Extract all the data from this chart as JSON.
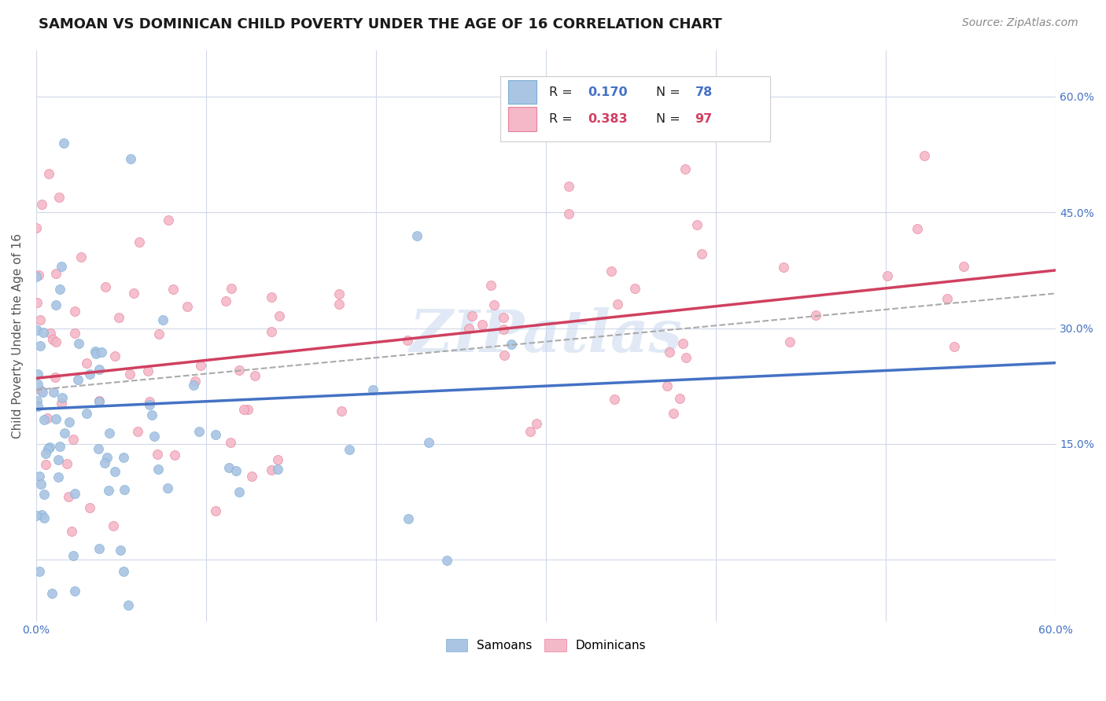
{
  "title": "SAMOAN VS DOMINICAN CHILD POVERTY UNDER THE AGE OF 16 CORRELATION CHART",
  "source": "Source: ZipAtlas.com",
  "ylabel": "Child Poverty Under the Age of 16",
  "x_ticks": [
    0.0,
    0.1,
    0.2,
    0.3,
    0.4,
    0.5,
    0.6
  ],
  "x_tick_labels": [
    "0.0%",
    "",
    "",
    "",
    "",
    "",
    "60.0%"
  ],
  "y_ticks": [
    0.0,
    0.15,
    0.3,
    0.45,
    0.6
  ],
  "y_tick_labels_right": [
    "",
    "15.0%",
    "30.0%",
    "45.0%",
    "60.0%"
  ],
  "xlim": [
    0.0,
    0.6
  ],
  "ylim": [
    -0.08,
    0.66
  ],
  "samoan_color": "#aac4e4",
  "samoan_edge_color": "#7bafd4",
  "dominican_color": "#f4b8c8",
  "dominican_edge_color": "#e8819a",
  "samoan_line_color": "#4472c4",
  "dominican_line_color": "#d04060",
  "dashed_line_color": "#aaaaaa",
  "R_samoan": 0.17,
  "N_samoan": 78,
  "R_dominican": 0.383,
  "N_dominican": 97,
  "legend_samoans": "Samoans",
  "legend_dominicans": "Dominicans",
  "watermark": "ZIPatlas",
  "background_color": "#ffffff",
  "grid_color": "#d0d8e8",
  "title_fontsize": 13,
  "source_fontsize": 10,
  "axis_label_fontsize": 11,
  "tick_fontsize": 10,
  "marker_size": 75,
  "samoan_seed": 12,
  "dominican_seed": 55,
  "blue_line_start": 0.195,
  "blue_line_end": 0.255,
  "pink_line_start": 0.235,
  "pink_line_end": 0.375,
  "dashed_line_start": 0.22,
  "dashed_line_end": 0.345
}
